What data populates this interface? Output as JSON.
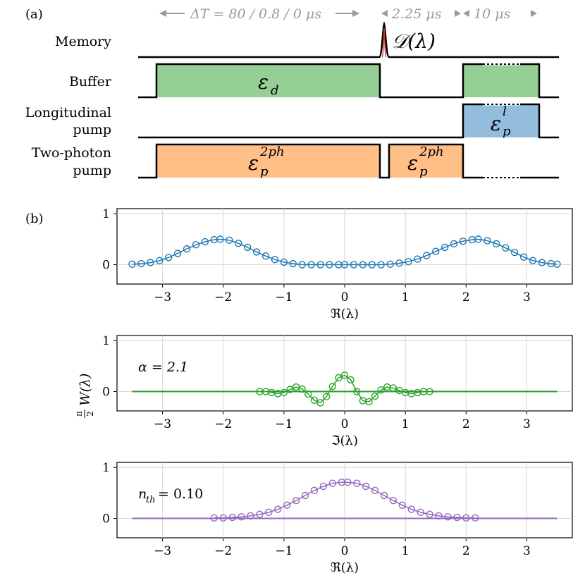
{
  "panel_a": {
    "label": "(a)",
    "timing": {
      "delta_t": "ΔT = 80 / 0.8 / 0 μs",
      "t_mid": "2.25 μs",
      "t_end": "10 μs"
    },
    "channels": [
      {
        "name": "Memory"
      },
      {
        "name": "Buffer"
      },
      {
        "name": "Longitudinal",
        "name2": "pump"
      },
      {
        "name": "Two-photon",
        "name2": "pump"
      }
    ],
    "pulse_labels": {
      "memory": "𝒟(λ)",
      "buffer": "ε",
      "buffer_sub": "d",
      "long": "ε",
      "long_sup": "l",
      "long_sub": "p",
      "tp1": "ε",
      "tp1_sup": "2ph",
      "tp1_sub": "p",
      "tp2": "ε",
      "tp2_sup": "2ph",
      "tp2_sub": "p"
    },
    "colors": {
      "buffer": "#95cf95",
      "longitudinal": "#93bcdd",
      "two_photon": "#ffbf86",
      "memory_peak": "#c0392b"
    }
  },
  "panel_b": {
    "label": "(b)",
    "ylabel": "π/2 W(λ)",
    "ylabel_frac_num": "π",
    "ylabel_frac_den": "2",
    "ylabel_rest": "W(λ)"
  },
  "chart_data": [
    {
      "type": "scatter",
      "name": "real-axis cut 1",
      "xlabel": "ℜ(λ)",
      "annotation": "",
      "color": "#1f77b4",
      "xlim": [
        -3.75,
        3.75
      ],
      "ylim": [
        -0.38,
        1.1
      ],
      "xticks": [
        -3,
        -2,
        -1,
        0,
        1,
        2,
        3
      ],
      "xtick_labels": [
        "−3",
        "−2",
        "−1",
        "0",
        "1",
        "2",
        "3"
      ],
      "yticks": [
        0,
        1
      ],
      "ytick_labels": [
        "0",
        "1"
      ],
      "line": {
        "x": [],
        "y": []
      },
      "markers": {
        "x": [
          -3.5,
          -3.35,
          -3.2,
          -3.05,
          -2.9,
          -2.75,
          -2.6,
          -2.45,
          -2.3,
          -2.15,
          -2.05,
          -1.9,
          -1.75,
          -1.6,
          -1.45,
          -1.3,
          -1.15,
          -1.0,
          -0.85,
          -0.7,
          -0.55,
          -0.4,
          -0.25,
          -0.1,
          0.0,
          0.15,
          0.3,
          0.45,
          0.6,
          0.75,
          0.9,
          1.05,
          1.2,
          1.35,
          1.5,
          1.65,
          1.8,
          1.95,
          2.1,
          2.2,
          2.35,
          2.5,
          2.65,
          2.8,
          2.95,
          3.1,
          3.25,
          3.4,
          3.5
        ],
        "y": [
          0.01,
          0.02,
          0.04,
          0.08,
          0.14,
          0.22,
          0.31,
          0.39,
          0.45,
          0.49,
          0.5,
          0.48,
          0.42,
          0.34,
          0.25,
          0.17,
          0.1,
          0.05,
          0.02,
          0.0,
          0.0,
          0.0,
          0.0,
          0.0,
          0.0,
          0.0,
          0.0,
          0.0,
          0.0,
          0.01,
          0.03,
          0.06,
          0.11,
          0.18,
          0.26,
          0.34,
          0.41,
          0.46,
          0.49,
          0.5,
          0.47,
          0.41,
          0.33,
          0.24,
          0.15,
          0.08,
          0.04,
          0.02,
          0.01
        ]
      }
    },
    {
      "type": "scatter",
      "name": "imaginary-axis cut",
      "xlabel": "ℑ(λ)",
      "annotation": "α = 2.1",
      "color": "#2ca02c",
      "xlim": [
        -3.75,
        3.75
      ],
      "ylim": [
        -0.38,
        1.1
      ],
      "xticks": [
        -3,
        -2,
        -1,
        0,
        1,
        2,
        3
      ],
      "xtick_labels": [
        "−3",
        "−2",
        "−1",
        "0",
        "1",
        "2",
        "3"
      ],
      "yticks": [
        0,
        1
      ],
      "ytick_labels": [
        "0",
        "1"
      ],
      "line": {
        "x": [
          -3.5,
          3.5
        ],
        "y": [
          0,
          0
        ]
      },
      "markers": {
        "x": [
          -1.4,
          -1.3,
          -1.2,
          -1.1,
          -1.0,
          -0.9,
          -0.8,
          -0.7,
          -0.6,
          -0.5,
          -0.4,
          -0.3,
          -0.2,
          -0.1,
          0.0,
          0.1,
          0.2,
          0.3,
          0.4,
          0.5,
          0.6,
          0.7,
          0.8,
          0.9,
          1.0,
          1.1,
          1.2,
          1.3,
          1.4
        ],
        "y": [
          0.0,
          0.0,
          -0.02,
          -0.04,
          -0.02,
          0.04,
          0.09,
          0.05,
          -0.05,
          -0.17,
          -0.22,
          -0.1,
          0.1,
          0.27,
          0.32,
          0.23,
          0.0,
          -0.18,
          -0.2,
          -0.09,
          0.03,
          0.09,
          0.07,
          0.02,
          -0.02,
          -0.04,
          -0.02,
          0.0,
          0.0
        ]
      }
    },
    {
      "type": "scatter",
      "name": "real-axis cut 2",
      "xlabel": "ℜ(λ)",
      "annotation": "n_th = 0.10",
      "annotation_main": "n",
      "annotation_sub": "th",
      "annotation_rest": " = 0.10",
      "color": "#9467bd",
      "xlim": [
        -3.75,
        3.75
      ],
      "ylim": [
        -0.38,
        1.1
      ],
      "xticks": [
        -3,
        -2,
        -1,
        0,
        1,
        2,
        3
      ],
      "xtick_labels": [
        "−3",
        "−2",
        "−1",
        "0",
        "1",
        "2",
        "3"
      ],
      "yticks": [
        0,
        1
      ],
      "ytick_labels": [
        "0",
        "1"
      ],
      "line": {
        "x": [
          -3.5,
          3.5
        ],
        "y": [
          0,
          0
        ]
      },
      "markers": {
        "x": [
          -2.15,
          -2.0,
          -1.85,
          -1.7,
          -1.55,
          -1.4,
          -1.25,
          -1.1,
          -0.95,
          -0.8,
          -0.65,
          -0.5,
          -0.35,
          -0.2,
          -0.05,
          0.05,
          0.2,
          0.35,
          0.5,
          0.65,
          0.8,
          0.95,
          1.1,
          1.25,
          1.4,
          1.55,
          1.7,
          1.85,
          2.0,
          2.15
        ],
        "y": [
          0.01,
          0.01,
          0.02,
          0.03,
          0.05,
          0.08,
          0.12,
          0.18,
          0.26,
          0.35,
          0.45,
          0.55,
          0.63,
          0.69,
          0.71,
          0.71,
          0.69,
          0.63,
          0.55,
          0.45,
          0.35,
          0.26,
          0.18,
          0.12,
          0.08,
          0.05,
          0.03,
          0.02,
          0.01,
          0.01
        ]
      }
    }
  ]
}
